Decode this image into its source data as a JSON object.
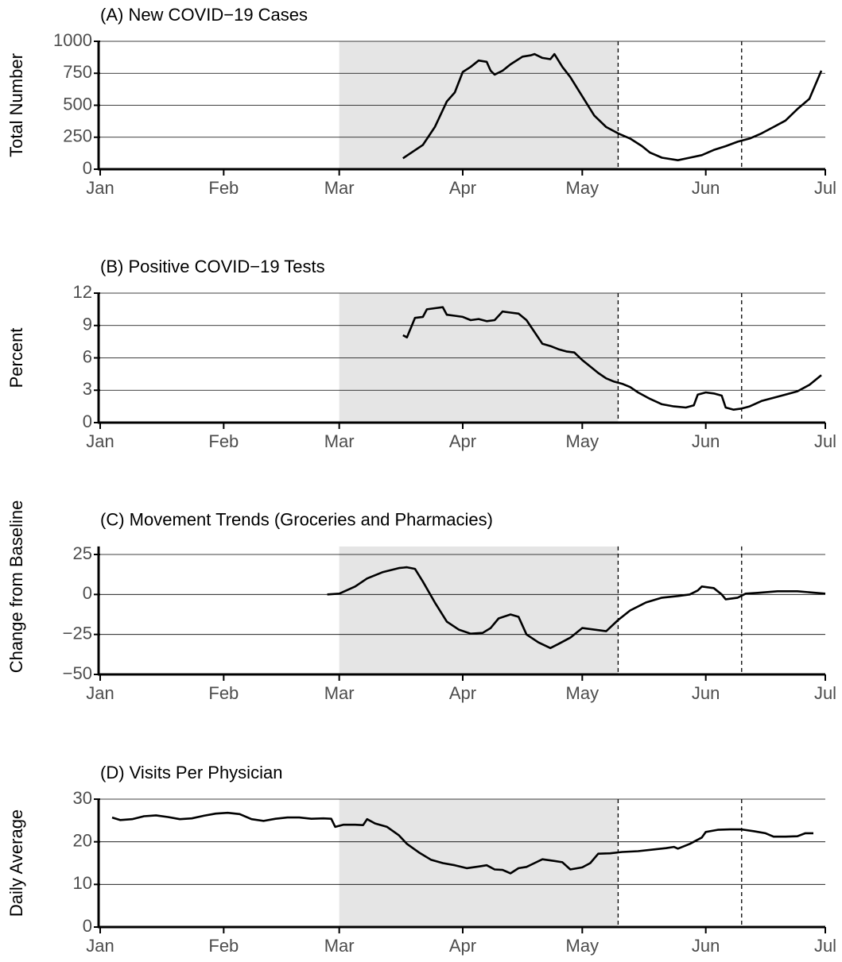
{
  "chart_data": [
    {
      "type": "line",
      "title": "(A) New COVID−19 Cases",
      "ylabel": "Total Number",
      "color": "#000000",
      "grid": true,
      "xlim": [
        0,
        182
      ],
      "xticks": [
        {
          "value": 0,
          "label": "Jan"
        },
        {
          "value": 31,
          "label": "Feb"
        },
        {
          "value": 60,
          "label": "Mar"
        },
        {
          "value": 91,
          "label": "Apr"
        },
        {
          "value": 121,
          "label": "May"
        },
        {
          "value": 152,
          "label": "Jun"
        },
        {
          "value": 182,
          "label": "Jul"
        }
      ],
      "ylim": [
        0,
        1000
      ],
      "yticks": [
        0,
        250,
        500,
        750,
        1000
      ],
      "shade": [
        60,
        130
      ],
      "vlines": [
        130,
        161
      ],
      "x": [
        76,
        81,
        84,
        87,
        89,
        91,
        93,
        95,
        97,
        98,
        99,
        101,
        103,
        106,
        108,
        109,
        111,
        113,
        114,
        116,
        118,
        121,
        124,
        127,
        130,
        133,
        136,
        138,
        141,
        145,
        148,
        151,
        154,
        157,
        160,
        163,
        166,
        169,
        172,
        175,
        178,
        181
      ],
      "values": [
        85,
        190,
        330,
        530,
        600,
        760,
        800,
        850,
        840,
        770,
        740,
        770,
        820,
        880,
        890,
        900,
        870,
        860,
        900,
        800,
        720,
        570,
        420,
        330,
        280,
        240,
        180,
        130,
        90,
        70,
        90,
        110,
        150,
        180,
        215,
        240,
        280,
        330,
        380,
        470,
        550,
        770
      ]
    },
    {
      "type": "line",
      "title": "(B) Positive COVID−19 Tests",
      "ylabel": "Percent",
      "color": "#000000",
      "grid": true,
      "xlim": [
        0,
        182
      ],
      "xticks": [
        {
          "value": 0,
          "label": "Jan"
        },
        {
          "value": 31,
          "label": "Feb"
        },
        {
          "value": 60,
          "label": "Mar"
        },
        {
          "value": 91,
          "label": "Apr"
        },
        {
          "value": 121,
          "label": "May"
        },
        {
          "value": 152,
          "label": "Jun"
        },
        {
          "value": 182,
          "label": "Jul"
        }
      ],
      "ylim": [
        0,
        12
      ],
      "yticks": [
        0,
        3,
        6,
        9,
        12
      ],
      "shade": [
        60,
        130
      ],
      "vlines": [
        130,
        161
      ],
      "x": [
        76,
        77,
        79,
        81,
        82,
        84,
        86,
        87,
        89,
        91,
        93,
        95,
        97,
        99,
        101,
        103,
        105,
        107,
        109,
        111,
        113,
        115,
        117,
        119,
        121,
        123,
        125,
        127,
        129,
        131,
        133,
        135,
        138,
        141,
        144,
        147,
        149,
        150,
        152,
        154,
        156,
        157,
        159,
        161,
        163,
        166,
        169,
        172,
        175,
        178,
        181
      ],
      "values": [
        8.1,
        7.9,
        9.7,
        9.8,
        10.5,
        10.6,
        10.7,
        10.0,
        9.9,
        9.8,
        9.5,
        9.6,
        9.4,
        9.5,
        10.3,
        10.2,
        10.1,
        9.5,
        8.4,
        7.3,
        7.1,
        6.8,
        6.6,
        6.5,
        5.8,
        5.2,
        4.6,
        4.1,
        3.8,
        3.6,
        3.3,
        2.8,
        2.2,
        1.7,
        1.5,
        1.4,
        1.6,
        2.6,
        2.8,
        2.7,
        2.5,
        1.4,
        1.2,
        1.3,
        1.5,
        2.0,
        2.3,
        2.6,
        2.9,
        3.5,
        4.4
      ]
    },
    {
      "type": "line",
      "title": "(C) Movement Trends (Groceries and Pharmacies)",
      "ylabel": "Change from Baseline",
      "color": "#000000",
      "grid": true,
      "xlim": [
        0,
        182
      ],
      "xticks": [
        {
          "value": 0,
          "label": "Jan"
        },
        {
          "value": 31,
          "label": "Feb"
        },
        {
          "value": 60,
          "label": "Mar"
        },
        {
          "value": 91,
          "label": "Apr"
        },
        {
          "value": 121,
          "label": "May"
        },
        {
          "value": 152,
          "label": "Jun"
        },
        {
          "value": 182,
          "label": "Jul"
        }
      ],
      "ylim": [
        -50,
        30
      ],
      "yticks": [
        {
          "value": -50,
          "label": "−50"
        },
        {
          "value": -25,
          "label": "−25"
        },
        0,
        25
      ],
      "shade": [
        60,
        130
      ],
      "vlines": [
        130,
        161
      ],
      "x": [
        57,
        60,
        64,
        67,
        71,
        75,
        77,
        79,
        81,
        84,
        87,
        90,
        93,
        96,
        98,
        100,
        103,
        105,
        107,
        110,
        113,
        115,
        118,
        121,
        124,
        127,
        130,
        133,
        137,
        141,
        145,
        148,
        150,
        151,
        154,
        156,
        157,
        160,
        162,
        165,
        170,
        175,
        182
      ],
      "values": [
        0,
        0.5,
        5,
        10,
        14,
        16.5,
        17,
        16,
        8,
        -5,
        -17,
        -22,
        -24.5,
        -24,
        -21,
        -15,
        -12.5,
        -14,
        -25,
        -30,
        -33.5,
        -31,
        -27,
        -21,
        -22,
        -23,
        -16,
        -10,
        -5,
        -2,
        -1,
        0,
        2.5,
        5,
        4,
        0,
        -3,
        -2,
        0.5,
        1,
        2,
        2,
        0.5
      ]
    },
    {
      "type": "line",
      "title": "(D) Visits Per Physician",
      "ylabel": "Daily Average",
      "color": "#000000",
      "grid": true,
      "xlim": [
        0,
        182
      ],
      "xticks": [
        {
          "value": 0,
          "label": "Jan"
        },
        {
          "value": 31,
          "label": "Feb"
        },
        {
          "value": 60,
          "label": "Mar"
        },
        {
          "value": 91,
          "label": "Apr"
        },
        {
          "value": 121,
          "label": "May"
        },
        {
          "value": 152,
          "label": "Jun"
        },
        {
          "value": 182,
          "label": "Jul"
        }
      ],
      "ylim": [
        0,
        30
      ],
      "yticks": [
        0,
        10,
        20,
        30
      ],
      "shade": [
        60,
        130
      ],
      "vlines": [
        130,
        161
      ],
      "x": [
        3,
        5,
        8,
        11,
        14,
        17,
        20,
        23,
        26,
        29,
        32,
        35,
        38,
        41,
        44,
        47,
        50,
        53,
        56,
        58,
        59,
        61,
        64,
        66,
        67,
        69,
        72,
        75,
        77,
        80,
        83,
        86,
        89,
        92,
        95,
        97,
        99,
        101,
        103,
        105,
        107,
        109,
        111,
        114,
        116,
        118,
        121,
        123,
        125,
        128,
        131,
        135,
        139,
        142,
        144,
        145,
        148,
        151,
        152,
        155,
        158,
        161,
        164,
        167,
        169,
        172,
        175,
        177,
        179
      ],
      "values": [
        25.7,
        25.1,
        25.3,
        26,
        26.2,
        25.8,
        25.3,
        25.5,
        26.1,
        26.6,
        26.8,
        26.5,
        25.3,
        24.9,
        25.4,
        25.7,
        25.7,
        25.4,
        25.5,
        25.4,
        23.5,
        24,
        24,
        23.9,
        25.3,
        24.3,
        23.5,
        21.5,
        19.5,
        17.5,
        15.8,
        15,
        14.5,
        13.8,
        14.2,
        14.5,
        13.5,
        13.4,
        12.6,
        13.8,
        14.1,
        15,
        15.9,
        15.5,
        15.2,
        13.5,
        14,
        15,
        17.2,
        17.3,
        17.6,
        17.8,
        18.2,
        18.5,
        18.8,
        18.4,
        19.5,
        21,
        22.3,
        22.8,
        22.9,
        22.9,
        22.5,
        22,
        21.2,
        21.2,
        21.3,
        22,
        22
      ]
    }
  ]
}
